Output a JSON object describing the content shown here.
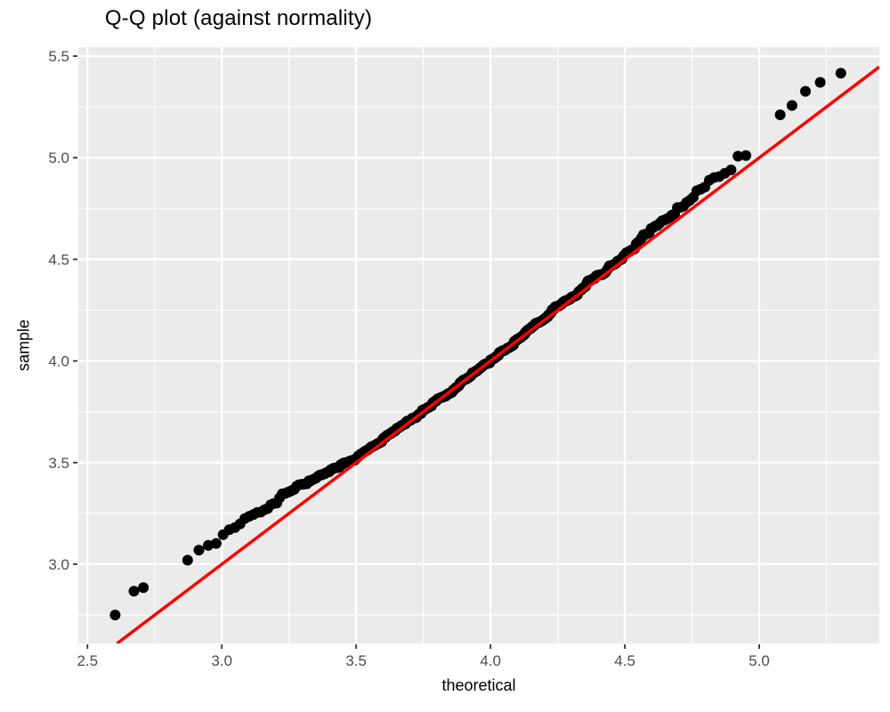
{
  "chart_data": {
    "type": "scatter",
    "subtype": "qq-plot",
    "title": "Q-Q plot (against normality)",
    "xlabel": "theoretical",
    "ylabel": "sample",
    "legend": "none",
    "grid": "on",
    "panel_background": "#EBEBEB",
    "grid_color": "#FFFFFF",
    "tick_mark_color": "#333333",
    "tick_label_color": "#4D4D4D",
    "title_color": "#000000",
    "point_color": "#000000",
    "ref_line_color": "#FF0000",
    "x_range": [
      2.466,
      5.447
    ],
    "y_range": [
      2.61,
      5.544
    ],
    "x_ticks": {
      "values": [
        2.5,
        3.0,
        3.5,
        4.0,
        4.5,
        5.0
      ],
      "labels": [
        "2.5",
        "3.0",
        "3.5",
        "4.0",
        "4.5",
        "5.0"
      ]
    },
    "y_ticks": {
      "values": [
        3.0,
        3.5,
        4.0,
        4.5,
        5.0,
        5.5
      ],
      "labels": [
        "3.0",
        "3.5",
        "4.0",
        "4.5",
        "5.0",
        "5.5"
      ]
    },
    "x_minor_gridlines": [
      2.75,
      3.25,
      3.75,
      4.25,
      4.75,
      5.25
    ],
    "y_minor_gridlines": [
      2.75,
      3.25,
      3.75,
      4.25,
      4.75,
      5.25
    ],
    "ref_line": {
      "slope": 1.0,
      "intercept": 0.0,
      "clip_from": [
        2.61,
        2.61
      ],
      "clip_to": [
        5.447,
        5.447
      ]
    },
    "points": {
      "n": 420,
      "marker_radius_px": 6,
      "x_quantiles": {
        "distribution": "normal",
        "mean": 3.95,
        "sd": 0.45
      },
      "jitter": {
        "seed": 11,
        "amp_mid": 0.042,
        "amp_tail": 0.008,
        "taper_z_start": 1.6,
        "taper_z_end": 2.5
      },
      "deviation_from_line_knots": [
        [
          2.6,
          0.15
        ],
        [
          2.67,
          0.195
        ],
        [
          2.71,
          0.175
        ],
        [
          2.76,
          0.155
        ],
        [
          2.85,
          0.146
        ],
        [
          3.0,
          0.14
        ],
        [
          3.25,
          0.11
        ],
        [
          3.4,
          0.06
        ],
        [
          3.5,
          0.025
        ],
        [
          3.65,
          0.01
        ],
        [
          3.8,
          0.004
        ],
        [
          4.0,
          0.002
        ],
        [
          4.2,
          0.01
        ],
        [
          4.4,
          0.025
        ],
        [
          4.6,
          0.04
        ],
        [
          4.75,
          0.055
        ],
        [
          4.9,
          0.068
        ],
        [
          5.0,
          0.08
        ],
        [
          5.1,
          0.115
        ],
        [
          5.2,
          0.14
        ],
        [
          5.3,
          0.115
        ]
      ],
      "low_tail_points": [
        [
          2.603,
          2.75
        ],
        [
          2.673,
          2.867
        ],
        [
          2.708,
          2.885
        ]
      ],
      "high_tail_points": [
        [
          5.078,
          5.211
        ],
        [
          5.122,
          5.257
        ],
        [
          5.172,
          5.327
        ],
        [
          5.227,
          5.371
        ],
        [
          5.304,
          5.416
        ]
      ]
    }
  }
}
